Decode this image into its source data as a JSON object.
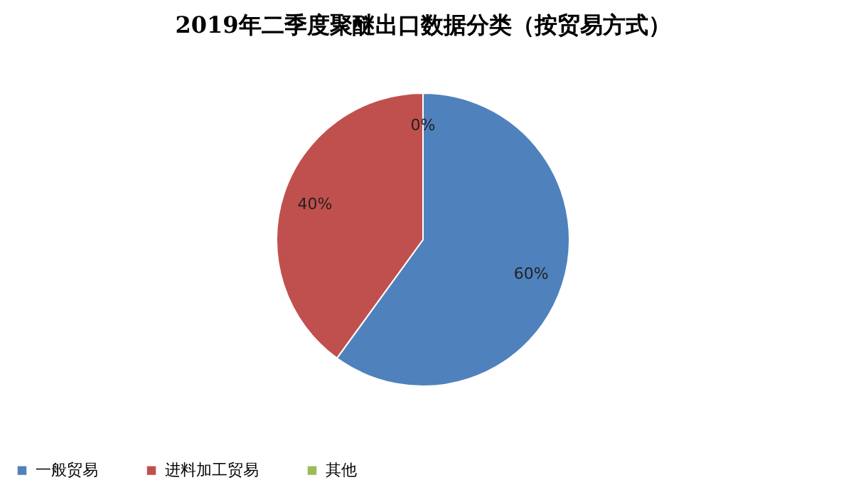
{
  "chart_data": {
    "type": "pie",
    "title": "2019年二季度聚醚出口数据分类（按贸易方式）",
    "categories": [
      "一般贸易",
      "进料加工贸易",
      "其他"
    ],
    "values": [
      60,
      40,
      0
    ],
    "colors": [
      "#4f81bd",
      "#c0504d",
      "#9bbb59"
    ],
    "value_labels": [
      "60%",
      "40%",
      "0%"
    ],
    "legend": "bottom"
  }
}
